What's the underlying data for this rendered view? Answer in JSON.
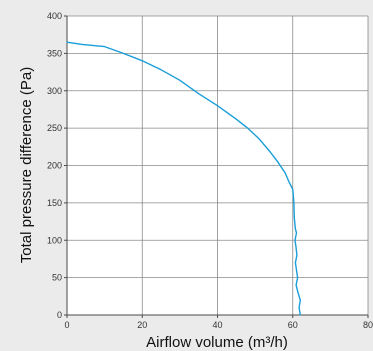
{
  "chart_data": {
    "type": "line",
    "xlabel": "Airflow volume (m³/h)",
    "ylabel": "Total pressure difference (Pa)",
    "xlim": [
      0,
      80
    ],
    "ylim": [
      0,
      400
    ],
    "x_ticks": [
      0,
      20,
      40,
      60,
      80
    ],
    "y_ticks": [
      0,
      50,
      100,
      150,
      200,
      250,
      300,
      350,
      400
    ],
    "grid": true,
    "legend": "none",
    "series": [
      {
        "color": "#1a9ed9",
        "points": [
          [
            0,
            365
          ],
          [
            4,
            362
          ],
          [
            10,
            359
          ],
          [
            15,
            350
          ],
          [
            20,
            340
          ],
          [
            25,
            328
          ],
          [
            30,
            314
          ],
          [
            35,
            296
          ],
          [
            40,
            280
          ],
          [
            45,
            262
          ],
          [
            48,
            250
          ],
          [
            51,
            236
          ],
          [
            54,
            218
          ],
          [
            56,
            205
          ],
          [
            58,
            190
          ],
          [
            59,
            178
          ],
          [
            60,
            168
          ],
          [
            60.3,
            150
          ],
          [
            60.4,
            130
          ],
          [
            60.7,
            115
          ],
          [
            61,
            110
          ],
          [
            60.6,
            100
          ],
          [
            60.9,
            90
          ],
          [
            61.1,
            80
          ],
          [
            60.7,
            70
          ],
          [
            61,
            60
          ],
          [
            61.3,
            50
          ],
          [
            60.9,
            40
          ],
          [
            61.4,
            30
          ],
          [
            62,
            20
          ],
          [
            61.7,
            10
          ],
          [
            62,
            0
          ]
        ]
      }
    ]
  }
}
